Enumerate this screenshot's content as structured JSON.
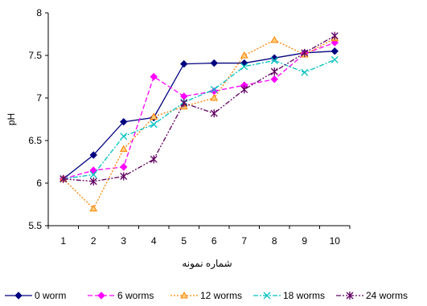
{
  "chart_data": {
    "type": "line",
    "x": [
      1,
      2,
      3,
      4,
      5,
      6,
      7,
      8,
      9,
      10
    ],
    "xlabel": "شماره نمونه",
    "ylabel": "pH",
    "ylim": [
      5.5,
      8
    ],
    "yticks": [
      "5.5",
      "6",
      "6.5",
      "7",
      "7.5",
      "8"
    ],
    "xticks": [
      "1",
      "2",
      "3",
      "4",
      "5",
      "6",
      "7",
      "8",
      "9",
      "10"
    ],
    "legend_position": "bottom",
    "grid": false,
    "series": [
      {
        "name": "0 worm",
        "color": "#000080",
        "dash": "solid",
        "marker": "diamond",
        "values": [
          6.05,
          6.33,
          6.72,
          6.77,
          7.4,
          7.41,
          7.41,
          7.47,
          7.53,
          7.55
        ]
      },
      {
        "name": "6 worms",
        "color": "#ff00ff",
        "dash": "dashed",
        "marker": "diamond",
        "values": [
          6.05,
          6.15,
          6.19,
          7.25,
          7.02,
          7.08,
          7.15,
          7.22,
          7.52,
          7.65
        ]
      },
      {
        "name": "12 worms",
        "color": "#ff8000",
        "dash": "dotted",
        "marker": "triangle",
        "values": [
          6.05,
          5.7,
          6.4,
          6.78,
          6.9,
          7.0,
          7.5,
          7.68,
          7.51,
          7.7
        ]
      },
      {
        "name": "18 worms",
        "color": "#00c0c0",
        "dash": "dashdot",
        "marker": "x",
        "values": [
          6.05,
          6.1,
          6.55,
          6.69,
          6.95,
          7.1,
          7.37,
          7.44,
          7.3,
          7.45
        ]
      },
      {
        "name": "24 worms",
        "color": "#600060",
        "dash": "dashdotdot",
        "marker": "star",
        "values": [
          6.05,
          6.02,
          6.08,
          6.28,
          6.94,
          6.82,
          7.1,
          7.31,
          7.53,
          7.73
        ]
      }
    ]
  }
}
